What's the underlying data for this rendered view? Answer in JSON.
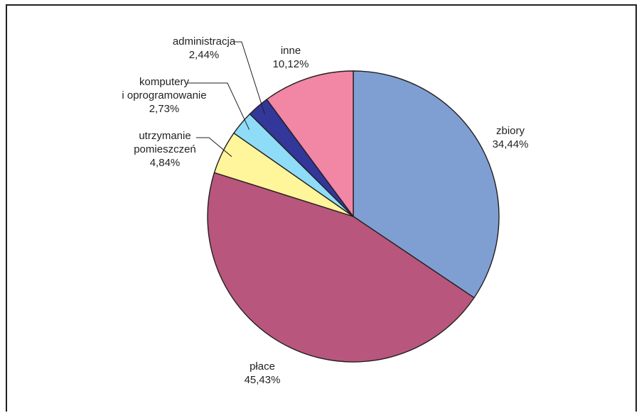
{
  "chart_data": {
    "type": "pie",
    "slices": [
      {
        "label": "zbiory",
        "value_text": "34,44%",
        "value": 34.44,
        "color": "#7f9fd3"
      },
      {
        "label": "płace",
        "value_text": "45,43%",
        "value": 45.43,
        "color": "#b8567d"
      },
      {
        "label": "utrzymanie\npomieszczeń",
        "value_text": "4,84%",
        "value": 4.84,
        "color": "#fff59b"
      },
      {
        "label": "komputery\ni oprogramowanie",
        "value_text": "2,73%",
        "value": 2.73,
        "color": "#8fdcf8"
      },
      {
        "label": "administracja",
        "value_text": "2,44%",
        "value": 2.44,
        "color": "#33379a"
      },
      {
        "label": "inne",
        "value_text": "10,12%",
        "value": 10.12,
        "color": "#f186a5"
      }
    ]
  }
}
